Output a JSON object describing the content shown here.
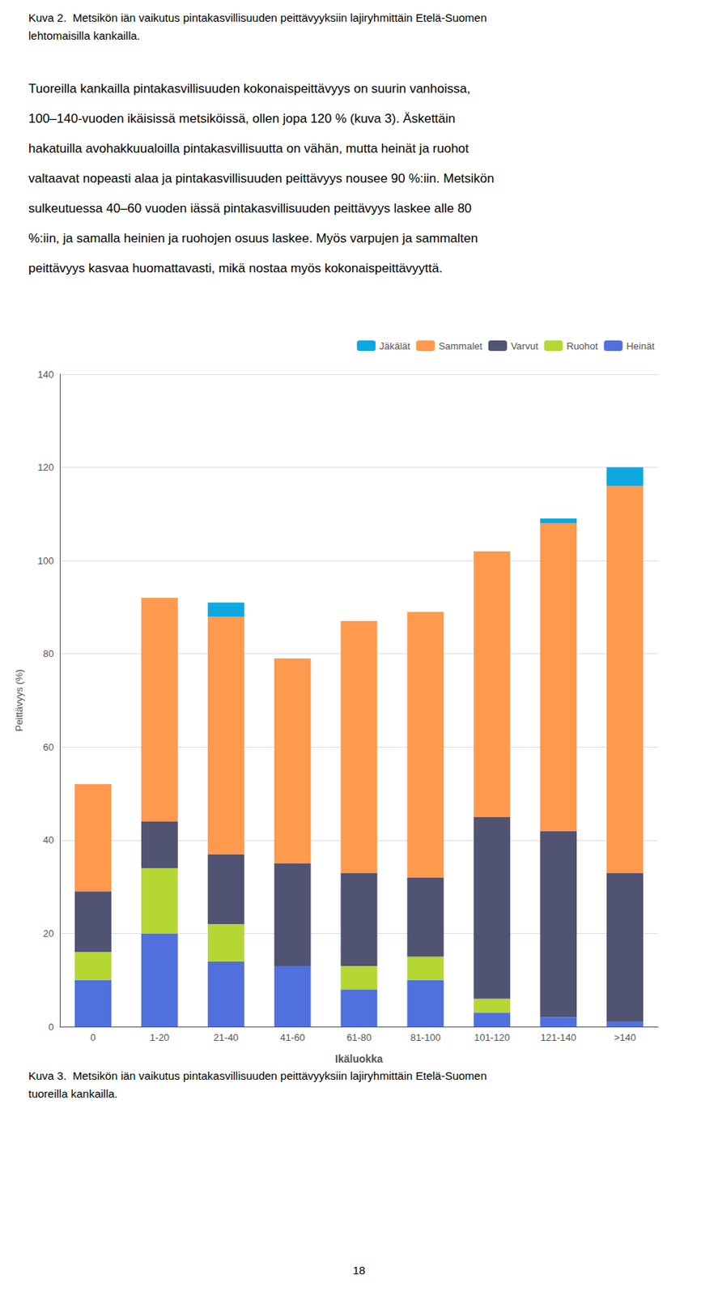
{
  "chart_data": {
    "type": "bar",
    "stacked": true,
    "categories": [
      "0",
      "1-20",
      "21-40",
      "41-60",
      "61-80",
      "81-100",
      "101-120",
      "121-140",
      ">140"
    ],
    "series": [
      {
        "name": "Heinät",
        "values": [
          10,
          20,
          14,
          13,
          8,
          10,
          3,
          2,
          1
        ]
      },
      {
        "name": "Ruohot",
        "values": [
          6,
          14,
          8,
          0,
          5,
          5,
          3,
          0,
          0
        ]
      },
      {
        "name": "Varvut",
        "values": [
          13,
          10,
          15,
          22,
          20,
          17,
          39,
          40,
          32
        ]
      },
      {
        "name": "Sammalet",
        "values": [
          23,
          48,
          51,
          44,
          54,
          57,
          57,
          66,
          83
        ]
      },
      {
        "name": "Jäkälät",
        "values": [
          0,
          0,
          3,
          0,
          0,
          0,
          0,
          1,
          4
        ]
      }
    ],
    "xlabel": "Ikäluokka",
    "ylabel": "Peittävyys (%)",
    "ylim": [
      0,
      140
    ],
    "yticks": [
      0,
      20,
      40,
      60,
      80,
      100,
      120,
      140
    ],
    "grid": true,
    "legend": "upper right",
    "annotations": [
      "Kuva 2.  Metsikön iän vaikutus pintakasvillisuuden peittävyyksiin lajiryhmittäin Etelä-Suomen",
      "lehtomaisilla kankailla.",
      "Tuoreilla kankailla pintakasvillisuuden kokonaispeittävyys on suurin vanhoissa,",
      "100–140-vuoden ikäisissä metsiköissä, ollen jopa 120 % (kuva 3). Äskettäin",
      "hakatuilla avohakkuualoilla pintakasvillisuutta on vähän, mutta heinät ja ruohot",
      "valtaavat nopeasti alaa ja pintakasvillisuuden peittävyys nousee 90 %:iin. Metsikön",
      "sulkeutuessa 40–60 vuoden iässä pintakasvillisuuden peittävyys laskee alle 80",
      "%:iin, ja samalla heinien ja ruohojen osuus laskee. Myös varpujen ja sammalten",
      "peittävyys kasvaa huomattavasti, mikä nostaa myös kokonaispeittävyyttä.",
      "Kuva 3.  Metsikön iän vaikutus pintakasvillisuuden peittävyyksiin lajiryhmittäin Etelä-Suomen",
      "tuoreilla kankailla.",
      "18"
    ]
  }
}
